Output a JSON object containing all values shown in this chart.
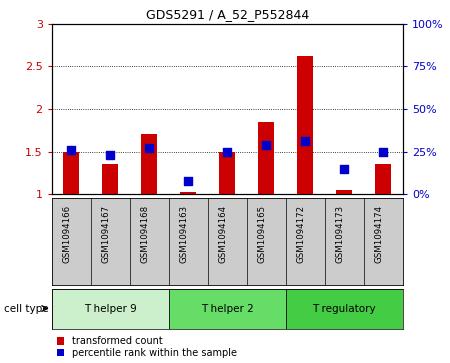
{
  "title": "GDS5291 / A_52_P552844",
  "samples": [
    "GSM1094166",
    "GSM1094167",
    "GSM1094168",
    "GSM1094163",
    "GSM1094164",
    "GSM1094165",
    "GSM1094172",
    "GSM1094173",
    "GSM1094174"
  ],
  "transformed_count": [
    1.5,
    1.35,
    1.7,
    1.02,
    1.5,
    1.85,
    2.62,
    1.05,
    1.35
  ],
  "percentile_rank": [
    26,
    23,
    27,
    8,
    25,
    29,
    31,
    15,
    25
  ],
  "cell_groups": [
    {
      "label": "T helper 9",
      "indices": [
        0,
        1,
        2
      ]
    },
    {
      "label": "T helper 2",
      "indices": [
        3,
        4,
        5
      ]
    },
    {
      "label": "T regulatory",
      "indices": [
        6,
        7,
        8
      ]
    }
  ],
  "group_colors": [
    "#ccf0cc",
    "#66dd66",
    "#44cc44"
  ],
  "ylim_left": [
    1.0,
    3.0
  ],
  "ylim_right": [
    0,
    100
  ],
  "yticks_left": [
    1.0,
    1.5,
    2.0,
    2.5,
    3.0
  ],
  "ytick_labels_left": [
    "1",
    "1.5",
    "2",
    "2.5",
    "3"
  ],
  "yticks_right_pct": [
    0,
    25,
    50,
    75,
    100
  ],
  "ytick_labels_right": [
    "0%",
    "25%",
    "50%",
    "75%",
    "100%"
  ],
  "bar_color": "#cc0000",
  "dot_color": "#0000cc",
  "bar_width": 0.4,
  "dot_size": 28,
  "grid_dotted_at": [
    1.5,
    2.0,
    2.5
  ],
  "bg_color": "#cccccc",
  "plot_bg": "#ffffff",
  "legend_bar_label": "transformed count",
  "legend_dot_label": "percentile rank within the sample",
  "cell_type_label": "cell type"
}
